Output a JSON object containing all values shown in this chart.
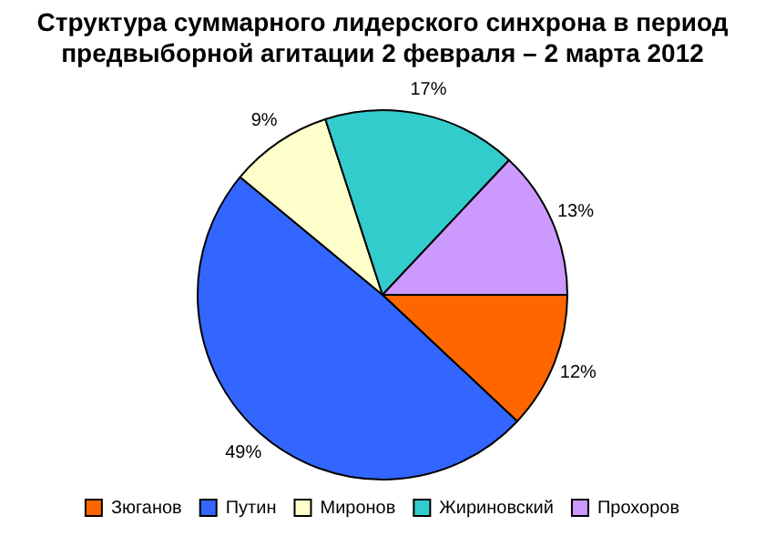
{
  "chart_data": {
    "type": "pie",
    "title": "Структура суммарного лидерского синхрона в период предвыборной агитации 2 февраля – 2 марта 2012",
    "categories": [
      "Зюганов",
      "Путин",
      "Миронов",
      "Жириновский",
      "Прохоров"
    ],
    "values": [
      12,
      49,
      9,
      17,
      13
    ],
    "colors": [
      "#ff6600",
      "#3366ff",
      "#ffffcc",
      "#33cccc",
      "#cc99ff"
    ],
    "value_labels": [
      "12%",
      "49%",
      "9%",
      "17%",
      "13%"
    ],
    "legend": "bottom"
  }
}
